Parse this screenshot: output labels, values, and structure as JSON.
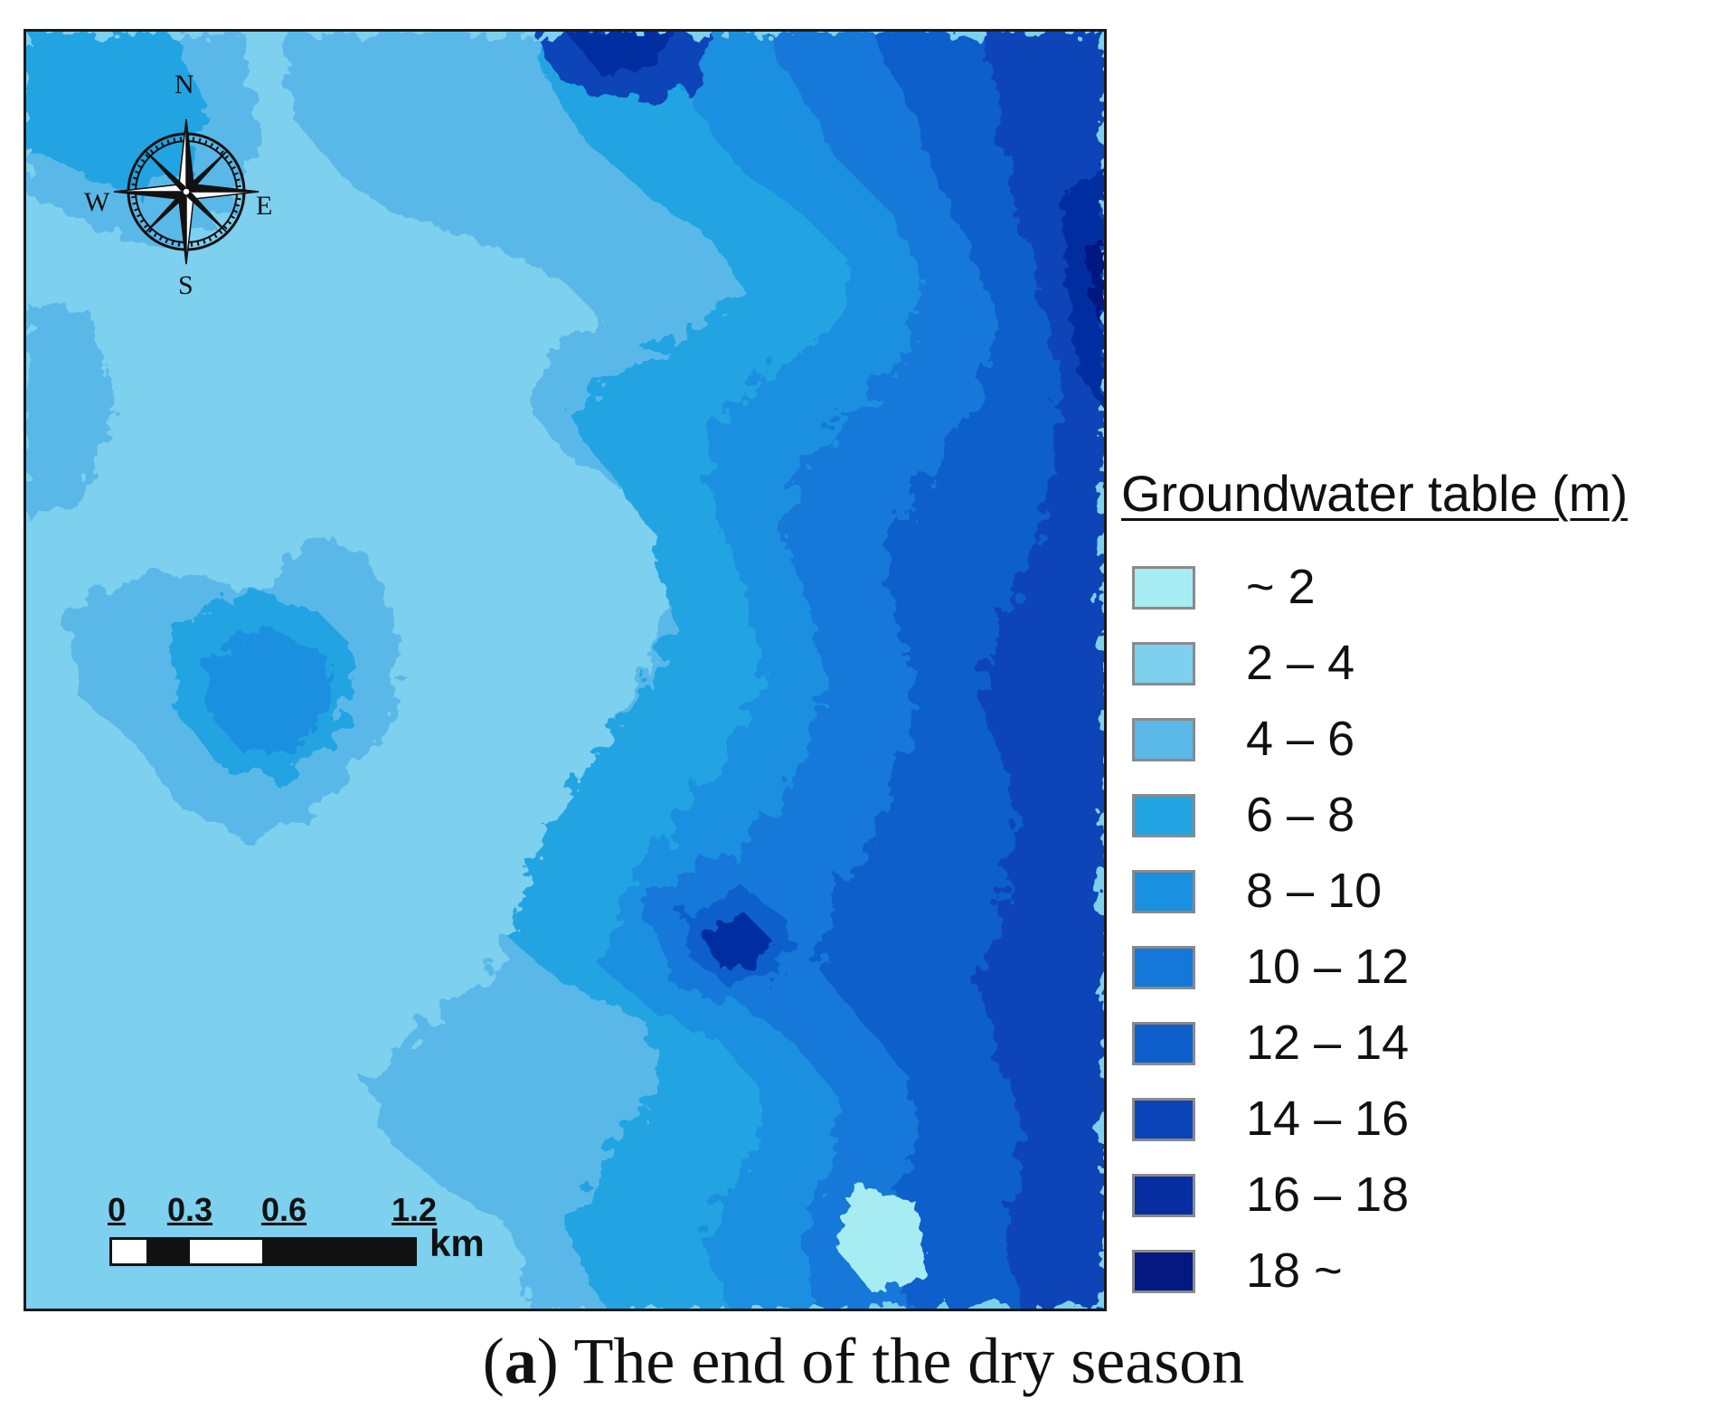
{
  "map": {
    "compass": {
      "north": "N",
      "south": "S",
      "east": "E",
      "west": "W"
    },
    "scale_bar": {
      "ticks": [
        "0",
        "0.3",
        "0.6",
        "1.2"
      ],
      "unit": "km"
    }
  },
  "legend": {
    "title": "Groundwater table (m)",
    "items": [
      {
        "label": "~ 2",
        "color": "#a6ecf2"
      },
      {
        "label": "2 – 4",
        "color": "#7dd0ee"
      },
      {
        "label": "4 – 6",
        "color": "#5ab8e8"
      },
      {
        "label": "6 – 8",
        "color": "#22a4e2"
      },
      {
        "label": "8 – 10",
        "color": "#1a90e0"
      },
      {
        "label": "10 – 12",
        "color": "#1478d8"
      },
      {
        "label": "12 – 14",
        "color": "#0e5fcc"
      },
      {
        "label": "14 – 16",
        "color": "#0a44b8"
      },
      {
        "label": "16 – 18",
        "color": "#062ea0"
      },
      {
        "label": "18 ~",
        "color": "#031880"
      }
    ]
  },
  "caption": {
    "panel": "a",
    "text": "The end of the dry season"
  }
}
